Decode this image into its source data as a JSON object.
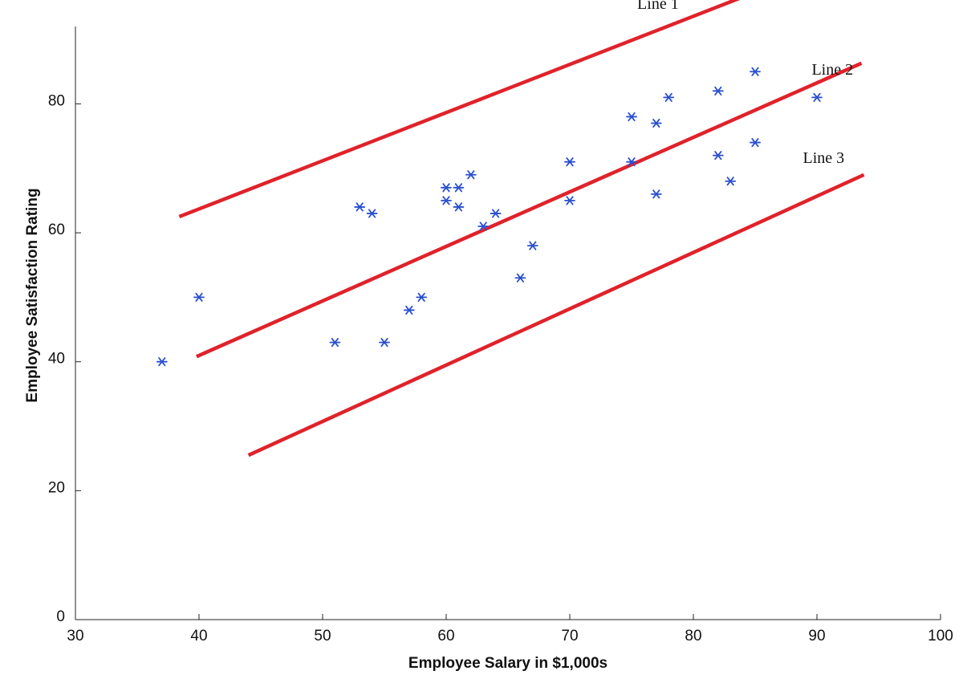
{
  "chart_data": {
    "type": "scatter",
    "xlabel": "Employee Salary in $1,000s",
    "ylabel": "Employee Satisfaction Rating",
    "xlim": [
      30,
      100
    ],
    "ylim": [
      0,
      92
    ],
    "xticks": [
      30,
      40,
      50,
      60,
      70,
      80,
      90,
      100
    ],
    "yticks": [
      0,
      20,
      40,
      60,
      80
    ],
    "grid": false,
    "colors": {
      "points": "#2a4fd0",
      "lines": "#e0222a"
    },
    "points": [
      {
        "x": 37,
        "y": 40
      },
      {
        "x": 40,
        "y": 50
      },
      {
        "x": 51,
        "y": 43
      },
      {
        "x": 53,
        "y": 64
      },
      {
        "x": 54,
        "y": 63
      },
      {
        "x": 55,
        "y": 43
      },
      {
        "x": 57,
        "y": 48
      },
      {
        "x": 58,
        "y": 50
      },
      {
        "x": 60,
        "y": 67
      },
      {
        "x": 60,
        "y": 65
      },
      {
        "x": 61,
        "y": 67
      },
      {
        "x": 61,
        "y": 64
      },
      {
        "x": 62,
        "y": 69
      },
      {
        "x": 63,
        "y": 61
      },
      {
        "x": 64,
        "y": 63
      },
      {
        "x": 66,
        "y": 53
      },
      {
        "x": 67,
        "y": 58
      },
      {
        "x": 70,
        "y": 71
      },
      {
        "x": 70,
        "y": 65
      },
      {
        "x": 75,
        "y": 78
      },
      {
        "x": 75,
        "y": 71
      },
      {
        "x": 77,
        "y": 77
      },
      {
        "x": 77,
        "y": 66
      },
      {
        "x": 78,
        "y": 81
      },
      {
        "x": 82,
        "y": 82
      },
      {
        "x": 82,
        "y": 72
      },
      {
        "x": 83,
        "y": 68
      },
      {
        "x": 85,
        "y": 85
      },
      {
        "x": 85,
        "y": 74
      },
      {
        "x": 90,
        "y": 81
      }
    ],
    "lines": [
      {
        "name": "Line 1",
        "x1": 38.4,
        "y1": 62.5,
        "x2": 83.9,
        "y2": 96.5
      },
      {
        "name": "Line 2",
        "x1": 39.8,
        "y1": 40.8,
        "x2": 93.6,
        "y2": 86.3
      },
      {
        "name": "Line 3",
        "x1": 44.0,
        "y1": 25.5,
        "x2": 93.8,
        "y2": 69.0
      }
    ]
  }
}
